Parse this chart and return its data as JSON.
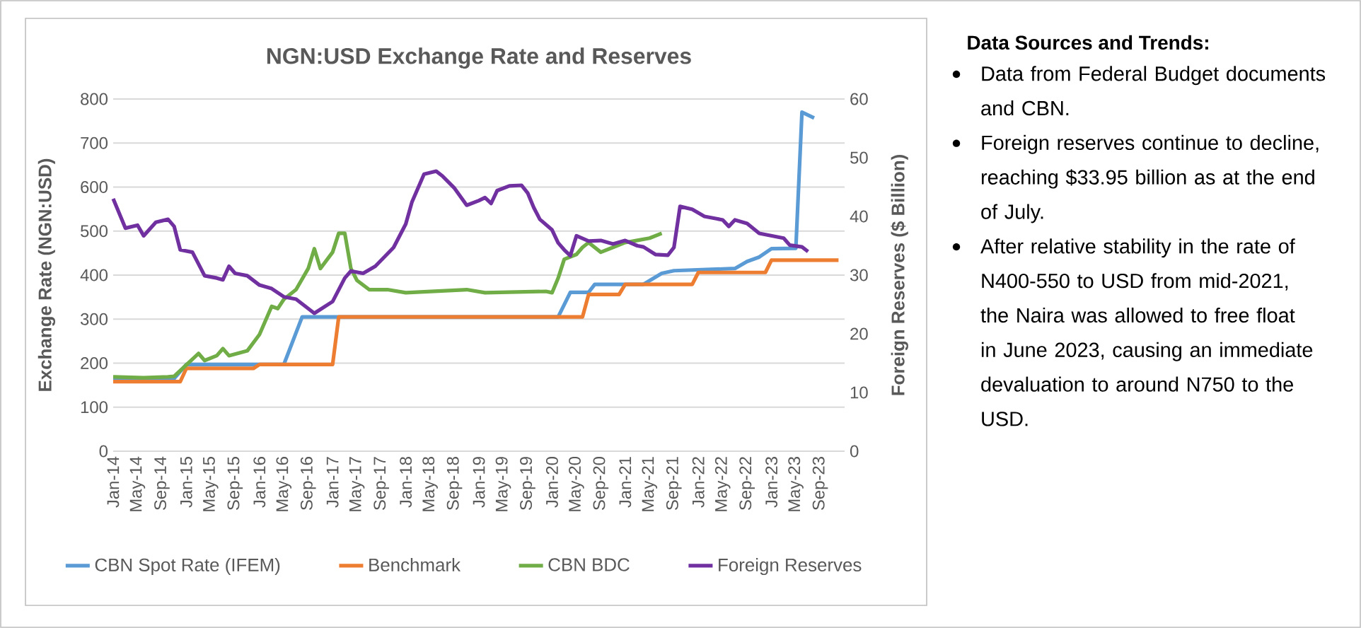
{
  "chart_data": {
    "type": "line",
    "title": "NGN:USD Exchange Rate and Reserves",
    "ylabel": "Exchange Rate (NGN:USD)",
    "y2label": "Foreign Reserves ($ Billion)",
    "xlim": [
      "2014-01",
      "2024-01"
    ],
    "xticks": [
      {
        "value": "2014-01",
        "label": "Jan-14"
      },
      {
        "value": "2014-05",
        "label": "May-14"
      },
      {
        "value": "2014-09",
        "label": "Sep-14"
      },
      {
        "value": "2015-01",
        "label": "Jan-15"
      },
      {
        "value": "2015-05",
        "label": "May-15"
      },
      {
        "value": "2015-09",
        "label": "Sep-15"
      },
      {
        "value": "2016-01",
        "label": "Jan-16"
      },
      {
        "value": "2016-05",
        "label": "May-16"
      },
      {
        "value": "2016-09",
        "label": "Sep-16"
      },
      {
        "value": "2017-01",
        "label": "Jan-17"
      },
      {
        "value": "2017-05",
        "label": "May-17"
      },
      {
        "value": "2017-09",
        "label": "Sep-17"
      },
      {
        "value": "2018-01",
        "label": "Jan-18"
      },
      {
        "value": "2018-05",
        "label": "May-18"
      },
      {
        "value": "2018-09",
        "label": "Sep-18"
      },
      {
        "value": "2019-01",
        "label": "Jan-19"
      },
      {
        "value": "2019-05",
        "label": "May-19"
      },
      {
        "value": "2019-09",
        "label": "Sep-19"
      },
      {
        "value": "2020-01",
        "label": "Jan-20"
      },
      {
        "value": "2020-05",
        "label": "May-20"
      },
      {
        "value": "2020-09",
        "label": "Sep-20"
      },
      {
        "value": "2021-01",
        "label": "Jan-21"
      },
      {
        "value": "2021-05",
        "label": "May-21"
      },
      {
        "value": "2021-09",
        "label": "Sep-21"
      },
      {
        "value": "2022-01",
        "label": "Jan-22"
      },
      {
        "value": "2022-05",
        "label": "May-22"
      },
      {
        "value": "2022-09",
        "label": "Sep-22"
      },
      {
        "value": "2023-01",
        "label": "Jan-23"
      },
      {
        "value": "2023-05",
        "label": "May-23"
      },
      {
        "value": "2023-09",
        "label": "Sep-23"
      }
    ],
    "ylim": [
      0,
      800
    ],
    "yticks": [
      0,
      100,
      200,
      300,
      400,
      500,
      600,
      700,
      800
    ],
    "y2lim": [
      0,
      60
    ],
    "y2ticks": [
      0,
      10,
      20,
      30,
      40,
      50,
      60
    ],
    "grid": "y",
    "legend": "bottom",
    "series": [
      {
        "name": "CBN Spot Rate (IFEM)",
        "color": "#5b9bd5",
        "x": [
          "2014-01",
          "2014-11",
          "2015-01",
          "2016-05",
          "2016-08",
          "2020-02",
          "2020-04",
          "2020-07",
          "2020-08",
          "2021-04",
          "2021-07",
          "2021-09",
          "2022-07",
          "2022-09",
          "2022-11",
          "2023-01",
          "2023-05",
          "2023-06",
          "2023-08"
        ],
        "values": [
          165,
          165,
          197,
          197,
          305,
          305,
          361,
          361,
          379,
          379,
          404,
          410,
          415,
          431,
          441,
          460,
          461,
          770,
          757
        ]
      },
      {
        "name": "Benchmark",
        "color": "#ed7d31",
        "x": [
          "2014-01",
          "2014-12",
          "2015-01",
          "2015-12",
          "2016-01",
          "2017-01",
          "2017-02",
          "2020-06",
          "2020-07",
          "2020-12",
          "2021-01",
          "2021-12",
          "2022-01",
          "2022-12",
          "2023-01",
          "2023-12"
        ],
        "values": [
          158,
          158,
          188,
          188,
          197,
          197,
          305,
          305,
          356,
          356,
          379,
          379,
          406,
          406,
          434,
          434
        ]
      },
      {
        "name": "CBN BDC",
        "color": "#70ad47",
        "x": [
          "2014-01",
          "2014-06",
          "2014-10",
          "2014-11",
          "2015-01",
          "2015-03",
          "2015-04",
          "2015-06",
          "2015-07",
          "2015-08",
          "2015-11",
          "2016-01",
          "2016-03",
          "2016-04",
          "2016-05",
          "2016-07",
          "2016-09",
          "2016-10",
          "2016-11",
          "2017-01",
          "2017-02",
          "2017-03",
          "2017-04",
          "2017-05",
          "2017-07",
          "2017-10",
          "2018-01",
          "2018-11",
          "2019-02",
          "2019-12",
          "2020-01",
          "2020-02",
          "2020-03",
          "2020-05",
          "2020-06",
          "2020-07",
          "2020-09",
          "2020-11",
          "2021-01",
          "2021-03",
          "2021-05",
          "2021-07"
        ],
        "values": [
          169,
          167,
          169,
          170,
          196,
          222,
          206,
          217,
          233,
          217,
          228,
          265,
          329,
          324,
          345,
          367,
          415,
          460,
          415,
          452,
          495,
          495,
          415,
          388,
          367,
          367,
          360,
          367,
          360,
          363,
          360,
          393,
          436,
          447,
          463,
          474,
          452,
          463,
          474,
          479,
          484,
          495
        ]
      },
      {
        "name": "Foreign Reserves",
        "color": "#7030a0",
        "axis": "y2",
        "x": [
          "2014-01",
          "2014-03",
          "2014-05",
          "2014-06",
          "2014-08",
          "2014-10",
          "2014-11",
          "2014-12",
          "2015-02",
          "2015-04",
          "2015-06",
          "2015-07",
          "2015-08",
          "2015-09",
          "2015-11",
          "2016-01",
          "2016-03",
          "2016-05",
          "2016-07",
          "2016-10",
          "2017-01",
          "2017-03",
          "2017-04",
          "2017-06",
          "2017-08",
          "2017-11",
          "2018-01",
          "2018-02",
          "2018-04",
          "2018-06",
          "2018-07",
          "2018-09",
          "2018-11",
          "2019-01",
          "2019-02",
          "2019-03",
          "2019-04",
          "2019-06",
          "2019-08",
          "2019-09",
          "2019-10",
          "2019-11",
          "2020-01",
          "2020-02",
          "2020-03",
          "2020-04",
          "2020-05",
          "2020-07",
          "2020-09",
          "2020-11",
          "2021-01",
          "2021-03",
          "2021-04",
          "2021-06",
          "2021-08",
          "2021-09",
          "2021-10",
          "2021-12",
          "2022-02",
          "2022-04",
          "2022-05",
          "2022-06",
          "2022-07",
          "2022-09",
          "2022-11",
          "2023-01",
          "2023-03",
          "2023-04",
          "2023-06",
          "2023-07"
        ],
        "values": [
          43,
          38,
          38.5,
          36.7,
          39,
          39.5,
          38.3,
          34.3,
          33.9,
          29.9,
          29.5,
          29.2,
          31.5,
          30.3,
          29.9,
          28.3,
          27.7,
          26.3,
          25.9,
          23.5,
          25.5,
          29.5,
          30.7,
          30.3,
          31.5,
          34.7,
          38.7,
          42.4,
          47.2,
          47.7,
          46.9,
          44.8,
          41.9,
          42.7,
          43.2,
          42.2,
          44.4,
          45.2,
          45.3,
          44,
          41.5,
          39.5,
          37.7,
          35.5,
          34.3,
          33.3,
          36.7,
          35.8,
          35.9,
          35.3,
          35.9,
          35,
          34.8,
          33.5,
          33.4,
          34.7,
          41.7,
          41.2,
          40,
          39.6,
          39.4,
          38.3,
          39.4,
          38.8,
          37.1,
          36.7,
          36.3,
          35.1,
          34.8,
          34
        ]
      }
    ],
    "annotations": [
      "Data Sources and Trends:",
      "Data from Federal Budget documents and CBN.",
      "Foreign reserves continue to decline, reaching $33.95 billion as at the end of July.",
      "After relative stability in the rate of N400-550 to USD from mid-2021, the Naira was allowed to free float in June 2023, causing an immediate devaluation to around N750 to the USD."
    ]
  }
}
